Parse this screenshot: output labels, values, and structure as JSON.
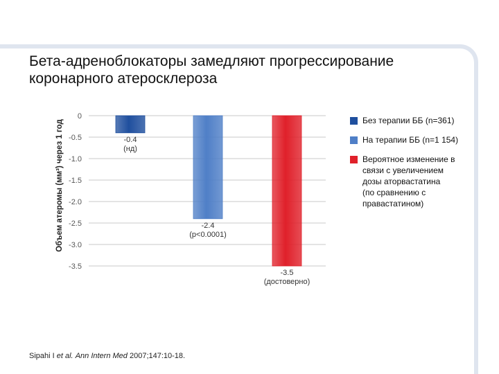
{
  "title": {
    "line1": "Бета-адреноблокаторы замедляют прогрессирование",
    "line2": "коронарного атеросклероза"
  },
  "chart_data": {
    "type": "bar",
    "ylabel": "Объем атеромы (мм³) через 1 год",
    "ylim": [
      -3.5,
      0
    ],
    "yticks": [
      {
        "value": 0,
        "label": "0"
      },
      {
        "value": -0.5,
        "label": "-0.5"
      },
      {
        "value": -1.0,
        "label": "-1.0"
      },
      {
        "value": -1.5,
        "label": "-1.5"
      },
      {
        "value": -2.0,
        "label": "-2.0"
      },
      {
        "value": -2.5,
        "label": "-2.5"
      },
      {
        "value": -3.0,
        "label": "-3.0"
      },
      {
        "value": -3.5,
        "label": "-3.5"
      }
    ],
    "grid": true,
    "legend_position": "right",
    "bars": [
      {
        "name": "Без терапии ББ (n=361)",
        "value": -0.4,
        "value_label": "-0.4",
        "note": "(нд)",
        "color": "#1f4f9e"
      },
      {
        "name": "На терапии ББ (n=1 154)",
        "value": -2.4,
        "value_label": "-2.4",
        "note": "(p<0.0001)",
        "color": "#4f7fc7"
      },
      {
        "name": "Вероятное изменение в связи с увеличением дозы аторвастатина (по сравнению с правастатином)",
        "value": -3.5,
        "value_label": "-3.5",
        "note": "(достоверно)",
        "color": "#e0202a"
      }
    ]
  },
  "legend": [
    {
      "lines": [
        "Без терапии ББ (n=361)"
      ],
      "color": "#1f4f9e"
    },
    {
      "lines": [
        "На терапии ББ (n=1 154)"
      ],
      "color": "#4f7fc7"
    },
    {
      "lines": [
        "Вероятное изменение в",
        "связи с увеличением",
        "дозы аторвастатина",
        "(по сравнению с",
        "правастатином)"
      ],
      "color": "#e0202a"
    }
  ],
  "citation": {
    "author": "Sipahi I",
    "etal": "et al.",
    "journal": "Ann Intern Med",
    "details": "2007;147:10-18."
  }
}
